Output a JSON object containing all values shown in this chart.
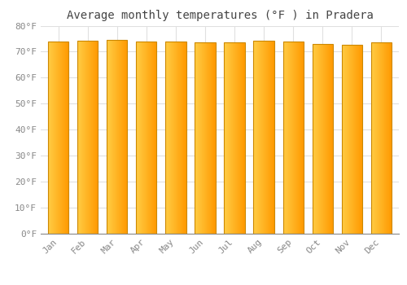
{
  "title": "Average monthly temperatures (°F ) in Pradera",
  "months": [
    "Jan",
    "Feb",
    "Mar",
    "Apr",
    "May",
    "Jun",
    "Jul",
    "Aug",
    "Sep",
    "Oct",
    "Nov",
    "Dec"
  ],
  "values": [
    73.8,
    74.1,
    74.5,
    73.8,
    73.9,
    73.5,
    73.6,
    74.2,
    73.9,
    72.8,
    72.5,
    73.6
  ],
  "ylim": [
    0,
    80
  ],
  "yticks": [
    0,
    10,
    20,
    30,
    40,
    50,
    60,
    70,
    80
  ],
  "ytick_labels": [
    "0°F",
    "10°F",
    "20°F",
    "30°F",
    "40°F",
    "50°F",
    "60°F",
    "70°F",
    "80°F"
  ],
  "bar_color_left": "#FFD060",
  "bar_color_center": "#FFB300",
  "bar_color_right": "#FFA000",
  "bar_edge_color": "#CC8800",
  "background_color": "#ffffff",
  "grid_color": "#e0e0e0",
  "title_fontsize": 10,
  "tick_fontsize": 8,
  "font_family": "monospace"
}
